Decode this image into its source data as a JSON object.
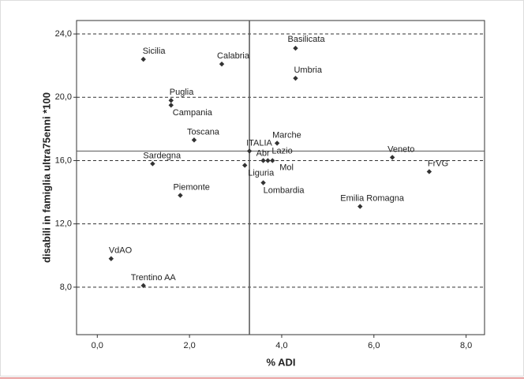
{
  "chart_data": {
    "type": "scatter",
    "x_label": "% ADI",
    "y_label": "disabili in famiglia ultra75enni *100",
    "categories": [
      "Sicilia",
      "Calabria",
      "Basilicata",
      "Umbria",
      "Puglia",
      "Campania",
      "Toscana",
      "Marche",
      "ITALIA",
      "Abr",
      "Lazio",
      "Mol",
      "Liguria",
      "Lombardia",
      "Sardegna",
      "Piemonte",
      "Veneto",
      "FrVG",
      "Emilia Romagna",
      "VdAO",
      "Trentino AA"
    ],
    "x": [
      1.0,
      2.7,
      4.3,
      4.3,
      1.6,
      1.6,
      2.1,
      3.9,
      3.3,
      3.6,
      3.7,
      3.8,
      3.2,
      3.6,
      1.2,
      1.8,
      6.4,
      7.2,
      5.7,
      0.3,
      1.0
    ],
    "values": [
      22.4,
      22.1,
      23.1,
      21.2,
      19.8,
      19.5,
      17.3,
      17.1,
      16.6,
      16.0,
      16.0,
      16.0,
      15.7,
      14.6,
      15.8,
      13.8,
      16.2,
      15.3,
      13.1,
      9.8,
      8.1
    ],
    "color": "#333333",
    "xlim": [
      -0.45,
      8.4
    ],
    "ylim": [
      5,
      24.85
    ],
    "xticks": [
      {
        "value": 0,
        "label": "0,0"
      },
      {
        "value": 2,
        "label": "2,0"
      },
      {
        "value": 4,
        "label": "4,0"
      },
      {
        "value": 6,
        "label": "6,0"
      },
      {
        "value": 8,
        "label": "8,0"
      }
    ],
    "yticks": [
      {
        "value": 8,
        "label": "8,0"
      },
      {
        "value": 12,
        "label": "12,0"
      },
      {
        "value": 16,
        "label": "16,0"
      },
      {
        "value": 20,
        "label": "20,0"
      },
      {
        "value": 24,
        "label": "24,0"
      }
    ],
    "grid": true,
    "reference_point": "ITALIA"
  }
}
